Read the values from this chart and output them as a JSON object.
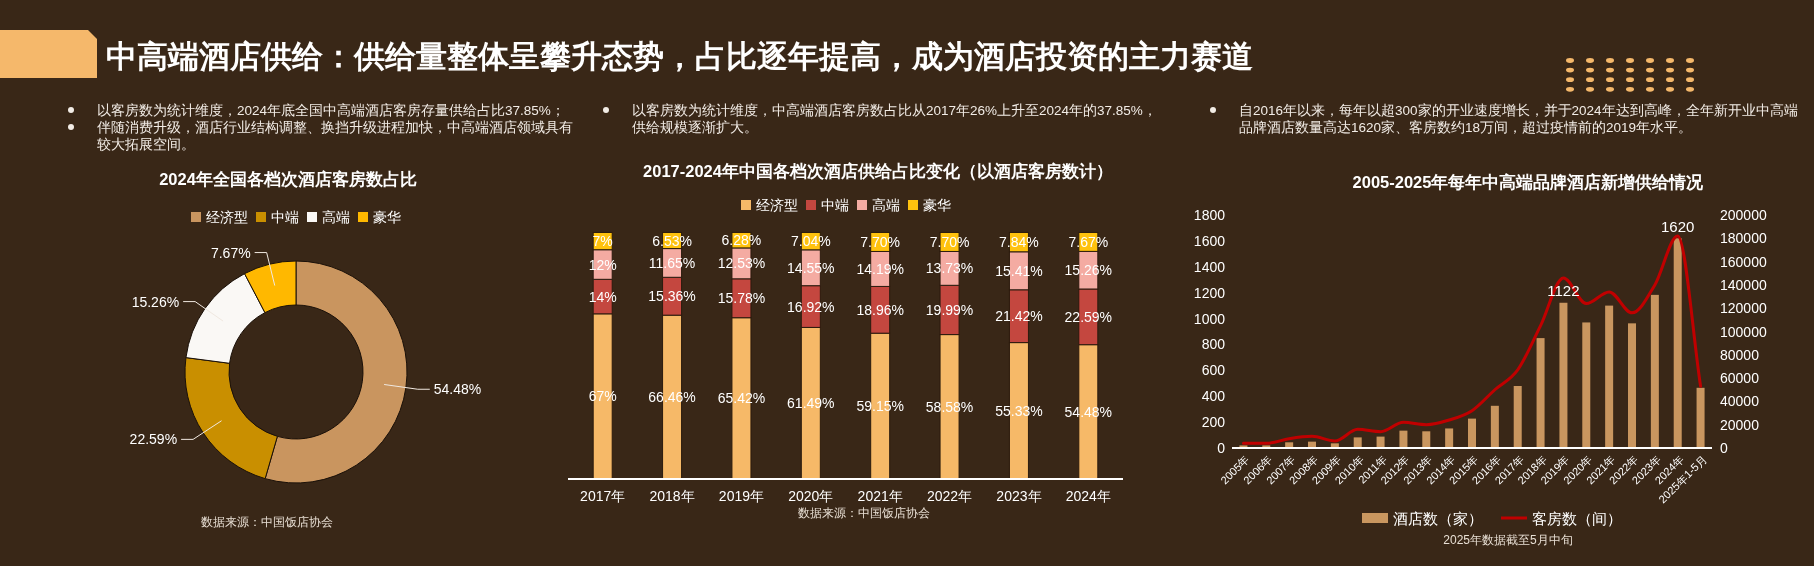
{
  "chart_data": [
    {
      "type": "other",
      "title": "中高端酒店供给：供给量整体呈攀升态势，占比逐年提高，成为酒店投资的主力赛道",
      "annotations": [
        "以客房数为统计维度，2024年底全国中高端酒店客房存量供给占比37.85%；",
        "伴随消费升级，酒店行业结构调整、换挡升级进程加快，中高端酒店领域具有较大拓展空间。",
        "以客房数为统计维度，中高端酒店客房数占比从2017年26%上升至2024年的37.85%，供给规模逐渐扩大。",
        "自2016年以来，每年以超300家的开业速度增长，并于2024年达到高峰，全年新开业中高端品牌酒店数量高达1620家、客房数约18万间，超过疫情前的2019年水平。"
      ]
    },
    {
      "type": "donut",
      "title": "2024年全国各档次酒店客房数占比",
      "categories": [
        "经济型",
        "中端",
        "高端",
        "豪华"
      ],
      "values": [
        54.48,
        22.59,
        15.26,
        7.67
      ],
      "colors": [
        "#c9955f",
        "#c98f00",
        "#faf8f5",
        "#ffb800"
      ],
      "value_labels": [
        "54.48%",
        "22.59%",
        "15.26%",
        "7.67%"
      ],
      "legend": "top",
      "annotations": [
        "数据来源：中国饭店协会"
      ]
    },
    {
      "type": "bar",
      "stacked": true,
      "title": "2017-2024年中国各档次酒店供给占比变化（以酒店客房数计）",
      "categories": [
        "2017年",
        "2018年",
        "2019年",
        "2020年",
        "2021年",
        "2022年",
        "2023年",
        "2024年"
      ],
      "series": [
        {
          "name": "经济型",
          "color": "#f6b968",
          "values": [
            67,
            66.46,
            65.42,
            61.49,
            59.15,
            58.58,
            55.33,
            54.48
          ],
          "value_labels": [
            "67%",
            "66.46%",
            "65.42%",
            "61.49%",
            "59.15%",
            "58.58%",
            "55.33%",
            "54.48%"
          ]
        },
        {
          "name": "中端",
          "color": "#c4473f",
          "values": [
            14,
            15.36,
            15.78,
            16.92,
            18.96,
            19.99,
            21.42,
            22.59
          ],
          "value_labels": [
            "14%",
            "15.36%",
            "15.78%",
            "16.92%",
            "18.96%",
            "19.99%",
            "21.42%",
            "22.59%"
          ]
        },
        {
          "name": "高端",
          "color": "#f4aba2",
          "values": [
            12,
            11.65,
            12.53,
            14.55,
            14.19,
            13.73,
            15.41,
            15.26
          ],
          "value_labels": [
            "12%",
            "11.65%",
            "12.53%",
            "14.55%",
            "14.19%",
            "13.73%",
            "15.41%",
            "15.26%"
          ]
        },
        {
          "name": "豪华",
          "color": "#ffc20e",
          "values": [
            7,
            6.53,
            6.28,
            7.04,
            7.7,
            7.7,
            7.84,
            7.67
          ],
          "value_labels": [
            "7%",
            "6.53%",
            "6.28%",
            "7.04%",
            "7.70%",
            "7.70%",
            "7.84%",
            "7.67%"
          ]
        }
      ],
      "ylim": [
        0,
        101
      ],
      "tick_labels": "x",
      "legend": "top",
      "annotations": [
        "数据来源：中国饭店协会"
      ]
    },
    {
      "type": "bar",
      "title": "2005-2025年每年中高端品牌酒店新增供给情况",
      "categories": [
        "2005年",
        "2006年",
        "2007年",
        "2008年",
        "2009年",
        "2010年",
        "2011年",
        "2012年",
        "2013年",
        "2014年",
        "2015年",
        "2016年",
        "2017年",
        "2018年",
        "2019年",
        "2020年",
        "2021年",
        "2022年",
        "2023年",
        "2024年",
        "2025年1-5月"
      ],
      "series": [
        {
          "name": "酒店数（家）",
          "color": "#c9965f",
          "values": [
            20,
            20,
            44,
            49,
            36,
            82,
            88,
            134,
            129,
            151,
            227,
            326,
            479,
            849,
            1122,
            970,
            1100,
            963,
            1183,
            1620,
            465
          ],
          "value_labels": [
            null,
            null,
            null,
            null,
            null,
            null,
            null,
            null,
            null,
            null,
            null,
            null,
            null,
            null,
            "1122",
            null,
            null,
            null,
            null,
            "1620",
            null
          ]
        },
        {
          "name": "客房数（间）",
          "type": "line",
          "axis": "y2",
          "color": "#c00000",
          "values": [
            4000,
            4000,
            8000,
            10000,
            6000,
            16000,
            14000,
            22000,
            20000,
            24000,
            32000,
            50000,
            67000,
            105000,
            146000,
            124000,
            134000,
            116000,
            140000,
            182000,
            53000
          ]
        }
      ],
      "ylim": [
        0,
        1800
      ],
      "yticks": [
        0,
        200,
        400,
        600,
        800,
        1000,
        1200,
        1400,
        1600,
        1800
      ],
      "y2lim": [
        0,
        200000
      ],
      "y2ticks": [
        0,
        20000,
        40000,
        60000,
        80000,
        100000,
        120000,
        140000,
        160000,
        180000,
        200000
      ],
      "legend": "bottom",
      "annotations": [
        "2025年数据截至5月中旬"
      ]
    }
  ]
}
